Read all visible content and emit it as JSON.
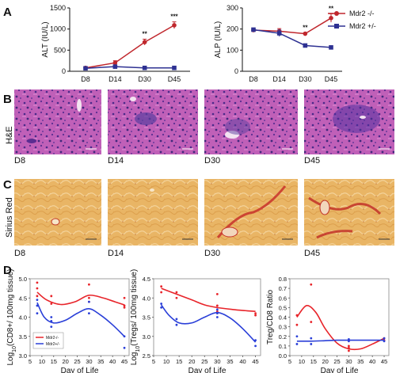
{
  "panels": {
    "A": "A",
    "B": "B",
    "C": "C",
    "D": "D"
  },
  "legend_A": {
    "series": [
      {
        "label": "Mdr2 -/-",
        "color": "#c0272d"
      },
      {
        "label": "Mdr2 +/-",
        "color": "#2e3192"
      }
    ]
  },
  "micrographs": {
    "he_row_label": "H&E",
    "sirius_row_label": "Sirius Red",
    "he_captions": [
      "D8",
      "D14",
      "D30",
      "D45"
    ],
    "sirius_captions": [
      "D8",
      "D14",
      "D30",
      "D45"
    ],
    "scale_bar": "100 µm",
    "he_color": "#b34aa8",
    "sirius_color": "#e8b060"
  },
  "legend_D": {
    "series": [
      {
        "label": "Mdr2-/-",
        "color": "#e8242a"
      },
      {
        "label": "Mdr2+/-",
        "color": "#2a3fd8"
      }
    ]
  },
  "chart_data": [
    {
      "type": "line",
      "panel": "A",
      "ylabel": "ALT (IU/L)",
      "categories": [
        "D8",
        "D14",
        "D30",
        "D45"
      ],
      "ylim": [
        0,
        1500
      ],
      "yticks": [
        0,
        500,
        1000,
        1500
      ],
      "series": [
        {
          "name": "Mdr2 -/-",
          "color": "#c0272d",
          "marker": "circle",
          "values": [
            80,
            200,
            690,
            1090
          ],
          "errors": [
            15,
            50,
            70,
            80
          ]
        },
        {
          "name": "Mdr2 +/-",
          "color": "#2e3192",
          "marker": "square",
          "values": [
            70,
            110,
            80,
            80
          ],
          "errors": [
            10,
            20,
            10,
            10
          ]
        }
      ],
      "annotations": [
        {
          "category": "D30",
          "text": "**"
        },
        {
          "category": "D45",
          "text": "***"
        }
      ]
    },
    {
      "type": "line",
      "panel": "A",
      "ylabel": "ALP (IU/L)",
      "categories": [
        "D8",
        "D14",
        "D30",
        "D45"
      ],
      "ylim": [
        0,
        300
      ],
      "yticks": [
        0,
        100,
        200,
        300
      ],
      "series": [
        {
          "name": "Mdr2 -/-",
          "color": "#c0272d",
          "marker": "circle",
          "values": [
            195,
            190,
            178,
            252
          ],
          "errors": [
            8,
            12,
            4,
            20
          ]
        },
        {
          "name": "Mdr2 +/-",
          "color": "#2e3192",
          "marker": "square",
          "values": [
            197,
            180,
            122,
            113
          ],
          "errors": [
            8,
            15,
            5,
            6
          ]
        }
      ],
      "annotations": [
        {
          "category": "D30",
          "text": "**"
        },
        {
          "category": "D45",
          "text": "**"
        }
      ]
    },
    {
      "type": "scatter",
      "panel": "D",
      "xlabel": "Day of Life",
      "ylabel": "Log10(CD8+/ 100mg tissue)",
      "ylabel_main": "Log",
      "ylabel_sub": "10",
      "ylabel_rest": "(CD8+/ 100mg tissue)",
      "xlim": [
        5,
        47
      ],
      "xticks": [
        5,
        10,
        15,
        20,
        25,
        30,
        35,
        40,
        45
      ],
      "ylim": [
        3.0,
        5.0
      ],
      "yticks": [
        3.0,
        3.5,
        4.0,
        4.5,
        5.0
      ],
      "series": [
        {
          "name": "Mdr2-/-",
          "color": "#e8242a",
          "points": [
            [
              8,
              4.9
            ],
            [
              8,
              4.75
            ],
            [
              8,
              4.55
            ],
            [
              14,
              4.55
            ],
            [
              14,
              4.35
            ],
            [
              30,
              4.85
            ],
            [
              30,
              4.5
            ],
            [
              30,
              4.4
            ],
            [
              45,
              4.5
            ],
            [
              45,
              4.3
            ],
            [
              45,
              4.25
            ]
          ],
          "curve": [
            [
              8,
              4.65
            ],
            [
              12,
              4.45
            ],
            [
              18,
              4.33
            ],
            [
              24,
              4.4
            ],
            [
              30,
              4.57
            ],
            [
              36,
              4.5
            ],
            [
              41,
              4.4
            ],
            [
              45,
              4.32
            ]
          ]
        },
        {
          "name": "Mdr2+/-",
          "color": "#2a3fd8",
          "points": [
            [
              8,
              4.45
            ],
            [
              8,
              4.3
            ],
            [
              8,
              4.1
            ],
            [
              14,
              4.0
            ],
            [
              14,
              3.9
            ],
            [
              14,
              3.75
            ],
            [
              30,
              4.4
            ],
            [
              30,
              4.1
            ],
            [
              45,
              3.5
            ],
            [
              45,
              3.2
            ]
          ],
          "curve": [
            [
              8,
              4.38
            ],
            [
              11,
              4.0
            ],
            [
              15,
              3.85
            ],
            [
              20,
              3.92
            ],
            [
              25,
              4.1
            ],
            [
              30,
              4.22
            ],
            [
              35,
              4.05
            ],
            [
              40,
              3.8
            ],
            [
              45,
              3.5
            ]
          ]
        }
      ]
    },
    {
      "type": "scatter",
      "panel": "D",
      "xlabel": "Day of Life",
      "ylabel": "Log10(Tregs/ 100mg tissue)",
      "ylabel_main": "Log",
      "ylabel_sub": "10",
      "ylabel_rest": "(Tregs/ 100mg tissue)",
      "xlim": [
        5,
        47
      ],
      "xticks": [
        5,
        10,
        15,
        20,
        25,
        30,
        35,
        40,
        45
      ],
      "ylim": [
        2.5,
        4.5
      ],
      "yticks": [
        2.5,
        3.0,
        3.5,
        4.0,
        4.5
      ],
      "series": [
        {
          "name": "Mdr2-/-",
          "color": "#e8242a",
          "points": [
            [
              8,
              4.3
            ],
            [
              8,
              4.15
            ],
            [
              14,
              4.15
            ],
            [
              14,
              4.0
            ],
            [
              30,
              4.1
            ],
            [
              30,
              3.8
            ],
            [
              30,
              3.65
            ],
            [
              45,
              3.6
            ],
            [
              45,
              3.55
            ]
          ],
          "curve": [
            [
              8,
              4.25
            ],
            [
              14,
              4.1
            ],
            [
              20,
              3.95
            ],
            [
              25,
              3.82
            ],
            [
              30,
              3.75
            ],
            [
              36,
              3.7
            ],
            [
              41,
              3.67
            ],
            [
              45,
              3.65
            ]
          ]
        },
        {
          "name": "Mdr2+/-",
          "color": "#2a3fd8",
          "points": [
            [
              8,
              3.85
            ],
            [
              8,
              3.75
            ],
            [
              14,
              3.45
            ],
            [
              14,
              3.3
            ],
            [
              30,
              3.7
            ],
            [
              30,
              3.6
            ],
            [
              30,
              3.5
            ],
            [
              45,
              2.9
            ],
            [
              45,
              2.75
            ]
          ],
          "curve": [
            [
              8,
              3.82
            ],
            [
              11,
              3.55
            ],
            [
              15,
              3.35
            ],
            [
              20,
              3.35
            ],
            [
              25,
              3.5
            ],
            [
              30,
              3.62
            ],
            [
              35,
              3.48
            ],
            [
              40,
              3.2
            ],
            [
              45,
              2.85
            ]
          ]
        }
      ]
    },
    {
      "type": "scatter",
      "panel": "D",
      "xlabel": "Day of Life",
      "ylabel": "Treg/CD8 Ratio",
      "xlim": [
        5,
        47
      ],
      "xticks": [
        5,
        10,
        15,
        20,
        25,
        30,
        35,
        40,
        45
      ],
      "ylim": [
        0.0,
        0.8
      ],
      "yticks": [
        0.0,
        0.1,
        0.2,
        0.3,
        0.4,
        0.5,
        0.6,
        0.7,
        0.8
      ],
      "series": [
        {
          "name": "Mdr2-/-",
          "color": "#e8242a",
          "points": [
            [
              8,
              0.42
            ],
            [
              8,
              0.32
            ],
            [
              14,
              0.74
            ],
            [
              14,
              0.35
            ],
            [
              30,
              0.1
            ],
            [
              30,
              0.08
            ],
            [
              30,
              0.05
            ],
            [
              45,
              0.18
            ],
            [
              45,
              0.16
            ]
          ],
          "curve": [
            [
              8,
              0.4
            ],
            [
              12,
              0.52
            ],
            [
              16,
              0.45
            ],
            [
              20,
              0.28
            ],
            [
              25,
              0.13
            ],
            [
              30,
              0.07
            ],
            [
              35,
              0.07
            ],
            [
              40,
              0.12
            ],
            [
              45,
              0.18
            ]
          ]
        },
        {
          "name": "Mdr2+/-",
          "color": "#2a3fd8",
          "points": [
            [
              8,
              0.2
            ],
            [
              8,
              0.12
            ],
            [
              14,
              0.18
            ],
            [
              14,
              0.12
            ],
            [
              30,
              0.17
            ],
            [
              30,
              0.15
            ],
            [
              45,
              0.18
            ],
            [
              45,
              0.15
            ]
          ],
          "curve": [
            [
              8,
              0.15
            ],
            [
              14,
              0.15
            ],
            [
              20,
              0.155
            ],
            [
              25,
              0.16
            ],
            [
              30,
              0.16
            ],
            [
              35,
              0.16
            ],
            [
              40,
              0.16
            ],
            [
              45,
              0.16
            ]
          ]
        }
      ]
    }
  ]
}
